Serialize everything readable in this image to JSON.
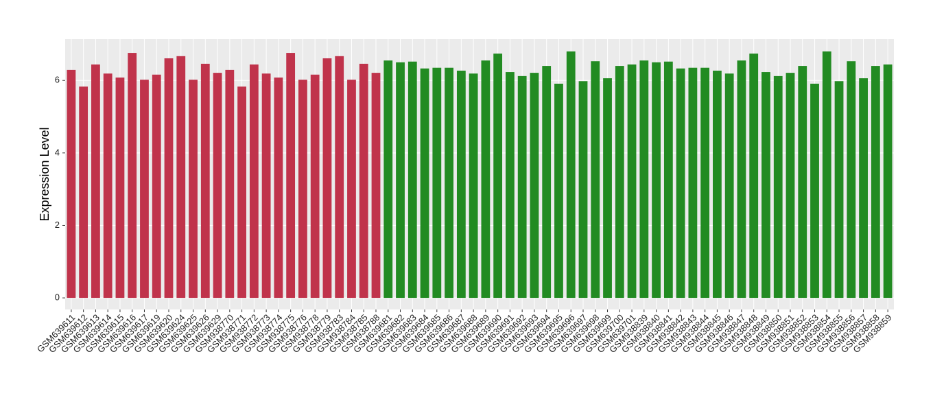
{
  "chart_data": {
    "type": "bar",
    "y_label": "Expression Level",
    "categories": [
      "GSM639611",
      "GSM639612",
      "GSM639613",
      "GSM639614",
      "GSM639615",
      "GSM639616",
      "GSM639617",
      "GSM639619",
      "GSM639620",
      "GSM639624",
      "GSM639625",
      "GSM639626",
      "GSM639629",
      "GSM938770",
      "GSM938771",
      "GSM938772",
      "GSM938773",
      "GSM938774",
      "GSM938775",
      "GSM938776",
      "GSM938778",
      "GSM938779",
      "GSM938783",
      "GSM938784",
      "GSM938785",
      "GSM938788",
      "GSM639681",
      "GSM639682",
      "GSM639683",
      "GSM639684",
      "GSM639685",
      "GSM639686",
      "GSM639687",
      "GSM639688",
      "GSM639689",
      "GSM639690",
      "GSM639691",
      "GSM639692",
      "GSM639693",
      "GSM639694",
      "GSM639695",
      "GSM639696",
      "GSM639697",
      "GSM639698",
      "GSM639699",
      "GSM639700",
      "GSM639701",
      "GSM938839",
      "GSM938840",
      "GSM938841",
      "GSM938842",
      "GSM938843",
      "GSM938844",
      "GSM938845",
      "GSM938846",
      "GSM938847",
      "GSM938848",
      "GSM938849",
      "GSM938850",
      "GSM938851",
      "GSM938852",
      "GSM938853",
      "GSM938854",
      "GSM938855",
      "GSM938856",
      "GSM938857",
      "GSM938858",
      "GSM938859"
    ],
    "values": [
      6.29,
      5.83,
      6.44,
      6.19,
      6.08,
      6.76,
      6.02,
      6.16,
      6.61,
      6.67,
      6.02,
      6.46,
      6.21,
      6.29,
      5.83,
      6.44,
      6.19,
      6.08,
      6.76,
      6.02,
      6.16,
      6.61,
      6.67,
      6.02,
      6.46,
      6.21,
      6.55,
      6.5,
      6.52,
      6.33,
      6.35,
      6.35,
      6.27,
      6.19,
      6.55,
      6.74,
      6.23,
      6.12,
      6.21,
      6.4,
      5.91,
      6.8,
      5.98,
      6.53,
      6.06,
      6.4,
      6.44,
      6.55,
      6.5,
      6.52,
      6.33,
      6.35,
      6.35,
      6.27,
      6.19,
      6.55,
      6.74,
      6.23,
      6.12,
      6.21,
      6.4,
      5.91,
      6.8,
      5.98,
      6.53,
      6.06,
      6.4,
      6.44
    ],
    "colors": [
      "#c0334b",
      "#c0334b",
      "#c0334b",
      "#c0334b",
      "#c0334b",
      "#c0334b",
      "#c0334b",
      "#c0334b",
      "#c0334b",
      "#c0334b",
      "#c0334b",
      "#c0334b",
      "#c0334b",
      "#c0334b",
      "#c0334b",
      "#c0334b",
      "#c0334b",
      "#c0334b",
      "#c0334b",
      "#c0334b",
      "#c0334b",
      "#c0334b",
      "#c0334b",
      "#c0334b",
      "#c0334b",
      "#c0334b",
      "#228b22",
      "#228b22",
      "#228b22",
      "#228b22",
      "#228b22",
      "#228b22",
      "#228b22",
      "#228b22",
      "#228b22",
      "#228b22",
      "#228b22",
      "#228b22",
      "#228b22",
      "#228b22",
      "#228b22",
      "#228b22",
      "#228b22",
      "#228b22",
      "#228b22",
      "#228b22",
      "#228b22",
      "#228b22",
      "#228b22",
      "#228b22",
      "#228b22",
      "#228b22",
      "#228b22",
      "#228b22",
      "#228b22",
      "#228b22",
      "#228b22",
      "#228b22",
      "#228b22",
      "#228b22",
      "#228b22",
      "#228b22",
      "#228b22",
      "#228b22",
      "#228b22",
      "#228b22",
      "#228b22",
      "#228b22"
    ],
    "ylim": [
      -0.32,
      7.14
    ],
    "yticks": [
      0,
      2,
      4,
      6
    ],
    "grid": true
  }
}
